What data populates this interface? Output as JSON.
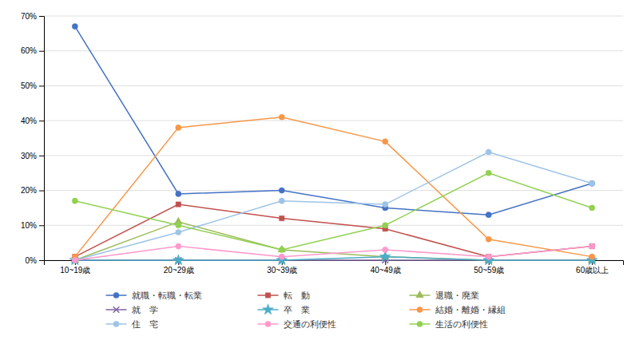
{
  "chart_data": {
    "type": "line",
    "categories": [
      "10~19歳",
      "20~29歳",
      "30~39歳",
      "40~49歳",
      "50~59歳",
      "60歳以上"
    ],
    "series": [
      {
        "name": "就職・転職・転業",
        "color": "#4472C4",
        "marker": "circle",
        "values": [
          67,
          19,
          20,
          15,
          13,
          22
        ]
      },
      {
        "name": "転　動",
        "color": "#C0504D",
        "marker": "square",
        "values": [
          1,
          16,
          12,
          9,
          1,
          4
        ]
      },
      {
        "name": "退職・廃業",
        "color": "#9BBB59",
        "marker": "triangle",
        "values": [
          0,
          11,
          3,
          1,
          0,
          0
        ]
      },
      {
        "name": "就　学",
        "color": "#8064A2",
        "marker": "x",
        "values": [
          0,
          0,
          0,
          0,
          0,
          0
        ]
      },
      {
        "name": "卒　業",
        "color": "#4BACC6",
        "marker": "star",
        "values": [
          0,
          0,
          0,
          1,
          0,
          0
        ]
      },
      {
        "name": "結婚・離婚・縁組",
        "color": "#F79646",
        "marker": "circle",
        "values": [
          1,
          38,
          41,
          34,
          6,
          1
        ]
      },
      {
        "name": "住　宅",
        "color": "#9DC3E6",
        "marker": "circle",
        "values": [
          0,
          8,
          17,
          16,
          31,
          22
        ]
      },
      {
        "name": "交通の利便性",
        "color": "#FF99CC",
        "marker": "circle",
        "values": [
          0,
          4,
          1,
          3,
          1,
          4
        ]
      },
      {
        "name": "生活の利便性",
        "color": "#92D050",
        "marker": "circle",
        "values": [
          17,
          10,
          3,
          10,
          25,
          15
        ]
      }
    ],
    "ylim": [
      0,
      70
    ],
    "yticks": [
      {
        "value": 0,
        "label": "0%"
      },
      {
        "value": 10,
        "label": "10%"
      },
      {
        "value": 20,
        "label": "20%"
      },
      {
        "value": 30,
        "label": "30%"
      },
      {
        "value": 40,
        "label": "40%"
      },
      {
        "value": 50,
        "label": "50%"
      },
      {
        "value": 60,
        "label": "60%"
      },
      {
        "value": 70,
        "label": "70%"
      }
    ],
    "grid": true,
    "legend": "bottom"
  }
}
